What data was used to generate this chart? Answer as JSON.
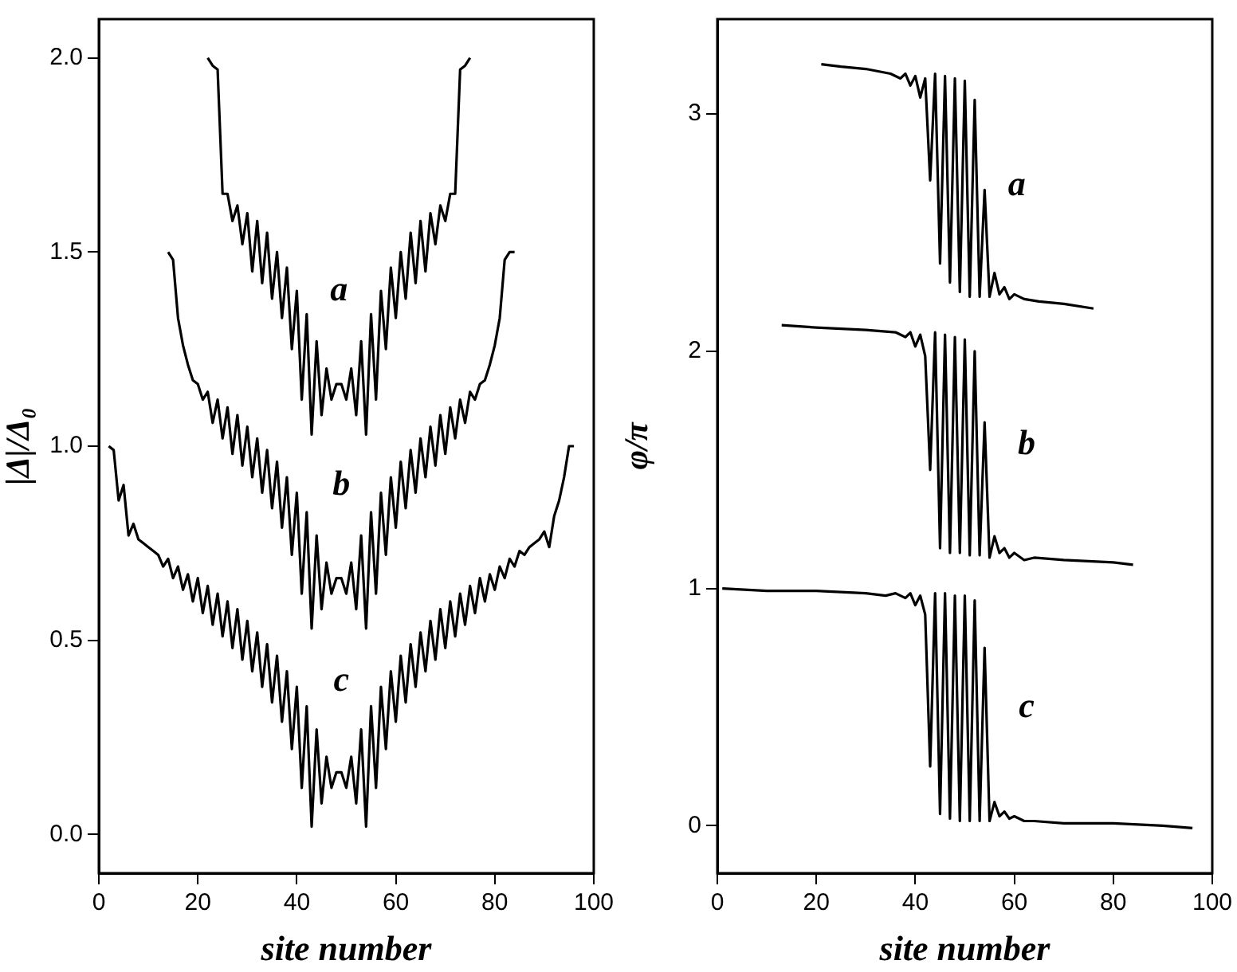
{
  "chart_data": [
    {
      "type": "line",
      "xlabel": "site number",
      "ylabel": "|Δ|/Δ₀",
      "xlim": [
        0,
        100
      ],
      "xticks": [
        0,
        20,
        40,
        60,
        80,
        100
      ],
      "ylim": [
        -0.1,
        2.1
      ],
      "yticks": [
        {
          "value": 0,
          "label": "0.0"
        },
        {
          "value": 0.5,
          "label": "0.5"
        },
        {
          "value": 1,
          "label": "1.0"
        },
        {
          "value": 1.5,
          "label": "1.5"
        },
        {
          "value": 2,
          "label": "2.0"
        }
      ],
      "series": [
        {
          "name": "a",
          "color": "#000000",
          "x": [
            22,
            23,
            24,
            25,
            26,
            27,
            28,
            29,
            30,
            31,
            32,
            33,
            34,
            35,
            36,
            37,
            38,
            39,
            40,
            41,
            42,
            43,
            44,
            45,
            46,
            47,
            48,
            49,
            50,
            51,
            52,
            53,
            54,
            55,
            56,
            57,
            58,
            59,
            60,
            61,
            62,
            63,
            64,
            65,
            66,
            67,
            68,
            69,
            70,
            71,
            72,
            73,
            74,
            75
          ],
          "values": [
            2.0,
            1.98,
            1.97,
            1.65,
            1.65,
            1.58,
            1.62,
            1.52,
            1.6,
            1.45,
            1.58,
            1.42,
            1.55,
            1.38,
            1.5,
            1.33,
            1.46,
            1.25,
            1.4,
            1.12,
            1.34,
            1.03,
            1.27,
            1.08,
            1.2,
            1.12,
            1.16,
            1.16,
            1.12,
            1.2,
            1.08,
            1.27,
            1.03,
            1.34,
            1.12,
            1.4,
            1.25,
            1.46,
            1.33,
            1.5,
            1.38,
            1.55,
            1.42,
            1.58,
            1.45,
            1.6,
            1.52,
            1.62,
            1.58,
            1.65,
            1.65,
            1.97,
            1.98,
            2.0
          ]
        },
        {
          "name": "b",
          "color": "#000000",
          "x": [
            14,
            15,
            16,
            17,
            18,
            19,
            20,
            21,
            22,
            23,
            24,
            25,
            26,
            27,
            28,
            29,
            30,
            31,
            32,
            33,
            34,
            35,
            36,
            37,
            38,
            39,
            40,
            41,
            42,
            43,
            44,
            45,
            46,
            47,
            48,
            49,
            50,
            51,
            52,
            53,
            54,
            55,
            56,
            57,
            58,
            59,
            60,
            61,
            62,
            63,
            64,
            65,
            66,
            67,
            68,
            69,
            70,
            71,
            72,
            73,
            74,
            75,
            76,
            77,
            78,
            79,
            80,
            81,
            82,
            83,
            84
          ],
          "values": [
            1.5,
            1.48,
            1.33,
            1.26,
            1.21,
            1.17,
            1.16,
            1.12,
            1.14,
            1.06,
            1.12,
            1.02,
            1.1,
            0.98,
            1.08,
            0.95,
            1.05,
            0.92,
            1.02,
            0.88,
            0.99,
            0.84,
            0.96,
            0.79,
            0.92,
            0.72,
            0.88,
            0.62,
            0.83,
            0.53,
            0.77,
            0.58,
            0.7,
            0.62,
            0.66,
            0.66,
            0.62,
            0.7,
            0.58,
            0.77,
            0.53,
            0.83,
            0.62,
            0.88,
            0.72,
            0.92,
            0.79,
            0.96,
            0.84,
            0.99,
            0.88,
            1.02,
            0.92,
            1.05,
            0.95,
            1.08,
            0.98,
            1.1,
            1.02,
            1.12,
            1.06,
            1.14,
            1.12,
            1.16,
            1.17,
            1.21,
            1.26,
            1.33,
            1.48,
            1.5,
            1.5
          ]
        },
        {
          "name": "c",
          "color": "#000000",
          "x": [
            2,
            3,
            4,
            5,
            6,
            7,
            8,
            9,
            10,
            11,
            12,
            13,
            14,
            15,
            16,
            17,
            18,
            19,
            20,
            21,
            22,
            23,
            24,
            25,
            26,
            27,
            28,
            29,
            30,
            31,
            32,
            33,
            34,
            35,
            36,
            37,
            38,
            39,
            40,
            41,
            42,
            43,
            44,
            45,
            46,
            47,
            48,
            49,
            50,
            51,
            52,
            53,
            54,
            55,
            56,
            57,
            58,
            59,
            60,
            61,
            62,
            63,
            64,
            65,
            66,
            67,
            68,
            69,
            70,
            71,
            72,
            73,
            74,
            75,
            76,
            77,
            78,
            79,
            80,
            81,
            82,
            83,
            84,
            85,
            86,
            87,
            88,
            89,
            90,
            91,
            92,
            93,
            94,
            95,
            96
          ],
          "values": [
            1.0,
            0.99,
            0.86,
            0.9,
            0.77,
            0.8,
            0.76,
            0.75,
            0.74,
            0.73,
            0.72,
            0.69,
            0.71,
            0.66,
            0.69,
            0.63,
            0.67,
            0.6,
            0.66,
            0.57,
            0.64,
            0.54,
            0.62,
            0.51,
            0.6,
            0.48,
            0.58,
            0.45,
            0.55,
            0.42,
            0.52,
            0.38,
            0.49,
            0.34,
            0.46,
            0.29,
            0.42,
            0.22,
            0.38,
            0.12,
            0.33,
            0.02,
            0.27,
            0.08,
            0.2,
            0.12,
            0.16,
            0.16,
            0.12,
            0.2,
            0.08,
            0.27,
            0.02,
            0.33,
            0.12,
            0.38,
            0.22,
            0.42,
            0.29,
            0.46,
            0.34,
            0.49,
            0.38,
            0.52,
            0.42,
            0.55,
            0.45,
            0.58,
            0.48,
            0.6,
            0.51,
            0.62,
            0.54,
            0.64,
            0.57,
            0.66,
            0.6,
            0.67,
            0.63,
            0.69,
            0.66,
            0.71,
            0.69,
            0.73,
            0.72,
            0.74,
            0.75,
            0.76,
            0.78,
            0.74,
            0.82,
            0.86,
            0.92,
            1.0,
            1.0
          ]
        }
      ]
    },
    {
      "type": "line",
      "xlabel": "site number",
      "ylabel": "φ/π",
      "xlim": [
        0,
        100
      ],
      "xticks": [
        0,
        20,
        40,
        60,
        80,
        100
      ],
      "ylim": [
        -0.2,
        3.4
      ],
      "yticks": [
        0,
        1,
        2,
        3
      ],
      "series": [
        {
          "name": "a",
          "color": "#000000",
          "x": [
            21,
            25,
            30,
            35,
            37,
            38,
            39,
            40,
            41,
            42,
            43,
            44,
            45,
            46,
            47,
            48,
            49,
            50,
            51,
            52,
            53,
            54,
            55,
            56,
            57,
            58,
            59,
            60,
            62,
            65,
            70,
            76
          ],
          "values": [
            3.21,
            3.2,
            3.19,
            3.17,
            3.15,
            3.17,
            3.12,
            3.16,
            3.07,
            3.15,
            2.72,
            3.17,
            2.37,
            3.16,
            2.29,
            3.15,
            2.25,
            3.14,
            2.23,
            3.06,
            2.23,
            2.68,
            2.23,
            2.33,
            2.24,
            2.27,
            2.22,
            2.24,
            2.22,
            2.21,
            2.2,
            2.18
          ]
        },
        {
          "name": "b",
          "color": "#000000",
          "x": [
            13,
            20,
            30,
            36,
            38,
            39,
            40,
            41,
            42,
            43,
            44,
            45,
            46,
            47,
            48,
            49,
            50,
            51,
            52,
            53,
            54,
            55,
            56,
            57,
            58,
            59,
            60,
            62,
            64,
            70,
            80,
            84
          ],
          "values": [
            2.11,
            2.1,
            2.09,
            2.08,
            2.06,
            2.08,
            2.02,
            2.07,
            1.98,
            1.5,
            2.08,
            1.17,
            2.07,
            1.15,
            2.06,
            1.15,
            2.05,
            1.14,
            2.0,
            1.14,
            1.7,
            1.13,
            1.22,
            1.15,
            1.17,
            1.13,
            1.15,
            1.12,
            1.13,
            1.12,
            1.11,
            1.1
          ]
        },
        {
          "name": "c",
          "color": "#000000",
          "x": [
            1,
            10,
            20,
            30,
            34,
            36,
            38,
            39,
            40,
            41,
            42,
            43,
            44,
            45,
            46,
            47,
            48,
            49,
            50,
            51,
            52,
            53,
            54,
            55,
            56,
            57,
            58,
            59,
            60,
            62,
            64,
            70,
            80,
            90,
            96
          ],
          "values": [
            1.0,
            0.99,
            0.99,
            0.98,
            0.97,
            0.98,
            0.96,
            0.98,
            0.93,
            0.97,
            0.89,
            0.25,
            0.98,
            0.05,
            0.98,
            0.03,
            0.97,
            0.02,
            0.97,
            0.02,
            0.95,
            0.02,
            0.75,
            0.02,
            0.1,
            0.04,
            0.06,
            0.03,
            0.04,
            0.02,
            0.02,
            0.01,
            0.01,
            0.0,
            -0.01
          ]
        }
      ]
    }
  ]
}
